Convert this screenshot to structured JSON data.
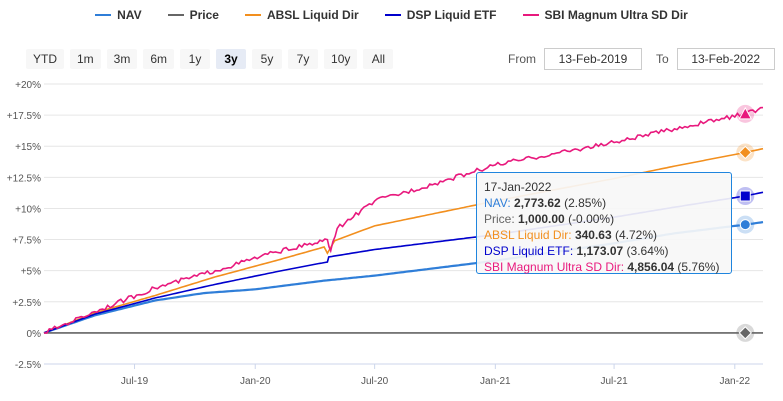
{
  "legend": [
    {
      "label": "NAV",
      "color": "#2f7ed8"
    },
    {
      "label": "Price",
      "color": "#666666"
    },
    {
      "label": "ABSL Liquid Dir",
      "color": "#f28f1e"
    },
    {
      "label": "DSP Liquid ETF",
      "color": "#0000cc"
    },
    {
      "label": "SBI Magnum Ultra SD Dir",
      "color": "#e8197d"
    }
  ],
  "range_buttons": [
    "YTD",
    "1m",
    "3m",
    "6m",
    "1y",
    "3y",
    "5y",
    "7y",
    "10y",
    "All"
  ],
  "active_range": "3y",
  "date_range": {
    "from_label": "From",
    "from_value": "13-Feb-2019",
    "to_label": "To",
    "to_value": "13-Feb-2022"
  },
  "tooltip": {
    "date": "17-Jan-2022",
    "rows": [
      {
        "name": "NAV",
        "value": "2,773.62",
        "change": "(2.85%)",
        "color": "#2f7ed8"
      },
      {
        "name": "Price",
        "value": "1,000.00",
        "change": "(-0.00%)",
        "color": "#666666"
      },
      {
        "name": "ABSL Liquid Dir",
        "value": "340.63",
        "change": "(4.72%)",
        "color": "#f28f1e"
      },
      {
        "name": "DSP Liquid ETF",
        "value": "1,173.07",
        "change": "(3.64%)",
        "color": "#0000cc"
      },
      {
        "name": "SBI Magnum Ultra SD Dir",
        "value": "4,856.04",
        "change": "(5.76%)",
        "color": "#e8197d"
      }
    ]
  },
  "chart_data": {
    "type": "line",
    "y_ticks": [
      "-2.5%",
      "0%",
      "+2.5%",
      "+5%",
      "+7.5%",
      "+10%",
      "+12.5%",
      "+15%",
      "+17.5%",
      "+20%"
    ],
    "y_tick_values": [
      -2.5,
      0,
      2.5,
      5,
      7.5,
      10,
      12.5,
      15,
      17.5,
      20
    ],
    "ylim": [
      -2.5,
      20
    ],
    "x_ticks": [
      {
        "label": "Jul-19",
        "x": "2019-07-01"
      },
      {
        "label": "Jan-20",
        "x": "2020-01-01"
      },
      {
        "label": "Jul-20",
        "x": "2020-07-01"
      },
      {
        "label": "Jan-21",
        "x": "2021-01-01"
      },
      {
        "label": "Jul-21",
        "x": "2021-07-01"
      },
      {
        "label": "Jan-22",
        "x": "2022-01-01"
      }
    ],
    "xlim": [
      "2019-02-13",
      "2022-02-13"
    ],
    "series": [
      {
        "name": "NAV",
        "color": "#2f7ed8",
        "marker": "circle",
        "points": [
          [
            "2019-02-13",
            0
          ],
          [
            "2019-05-01",
            1.4
          ],
          [
            "2019-08-01",
            2.6
          ],
          [
            "2019-10-15",
            3.2
          ],
          [
            "2020-01-01",
            3.5
          ],
          [
            "2020-04-15",
            4.2
          ],
          [
            "2020-07-01",
            4.6
          ],
          [
            "2020-10-01",
            5.2
          ],
          [
            "2021-01-01",
            5.8
          ],
          [
            "2021-04-01",
            6.5
          ],
          [
            "2021-07-01",
            7.2
          ],
          [
            "2021-10-01",
            8.0
          ],
          [
            "2022-01-17",
            8.7
          ],
          [
            "2022-02-13",
            8.9
          ]
        ]
      },
      {
        "name": "Price",
        "color": "#666666",
        "marker": "diamond",
        "points": [
          [
            "2019-02-13",
            0
          ],
          [
            "2022-02-13",
            0
          ]
        ]
      },
      {
        "name": "ABSL Liquid Dir",
        "color": "#f28f1e",
        "marker": "diamond",
        "points": [
          [
            "2019-02-13",
            0
          ],
          [
            "2019-05-01",
            1.6
          ],
          [
            "2019-08-01",
            3.0
          ],
          [
            "2019-11-01",
            4.5
          ],
          [
            "2020-02-01",
            5.8
          ],
          [
            "2020-04-15",
            6.9
          ],
          [
            "2020-04-20",
            6.4
          ],
          [
            "2020-05-01",
            7.4
          ],
          [
            "2020-07-01",
            8.6
          ],
          [
            "2020-10-01",
            9.6
          ],
          [
            "2021-01-01",
            10.6
          ],
          [
            "2021-04-01",
            11.5
          ],
          [
            "2021-07-01",
            12.4
          ],
          [
            "2021-10-01",
            13.4
          ],
          [
            "2022-01-17",
            14.5
          ],
          [
            "2022-02-13",
            14.8
          ]
        ]
      },
      {
        "name": "DSP Liquid ETF",
        "color": "#0000cc",
        "marker": "square",
        "points": [
          [
            "2019-02-13",
            0
          ],
          [
            "2019-05-01",
            1.5
          ],
          [
            "2019-08-01",
            2.8
          ],
          [
            "2019-11-01",
            3.9
          ],
          [
            "2020-02-01",
            4.9
          ],
          [
            "2020-04-20",
            5.7
          ],
          [
            "2020-04-22",
            6.1
          ],
          [
            "2020-07-01",
            6.7
          ],
          [
            "2020-10-01",
            7.3
          ],
          [
            "2021-01-01",
            7.9
          ],
          [
            "2021-04-01",
            8.6
          ],
          [
            "2021-07-01",
            9.3
          ],
          [
            "2021-10-01",
            10.1
          ],
          [
            "2022-01-17",
            11.0
          ],
          [
            "2022-02-13",
            11.3
          ]
        ]
      },
      {
        "name": "SBI Magnum Ultra SD Dir",
        "color": "#e8197d",
        "marker": "triangle",
        "points": [
          [
            "2019-02-13",
            0
          ],
          [
            "2019-05-01",
            1.7
          ],
          [
            "2019-08-01",
            3.6
          ],
          [
            "2019-11-01",
            5.0
          ],
          [
            "2020-02-01",
            6.5
          ],
          [
            "2020-04-01",
            7.2
          ],
          [
            "2020-04-20",
            7.5
          ],
          [
            "2020-04-25",
            6.6
          ],
          [
            "2020-05-05",
            8.4
          ],
          [
            "2020-07-01",
            10.6
          ],
          [
            "2020-10-01",
            12.0
          ],
          [
            "2021-01-01",
            13.5
          ],
          [
            "2021-04-01",
            14.4
          ],
          [
            "2021-07-01",
            15.3
          ],
          [
            "2021-10-01",
            16.4
          ],
          [
            "2022-01-17",
            17.6
          ],
          [
            "2022-02-13",
            18.1
          ]
        ]
      }
    ],
    "hover_x": "2022-01-17",
    "grid": true
  }
}
